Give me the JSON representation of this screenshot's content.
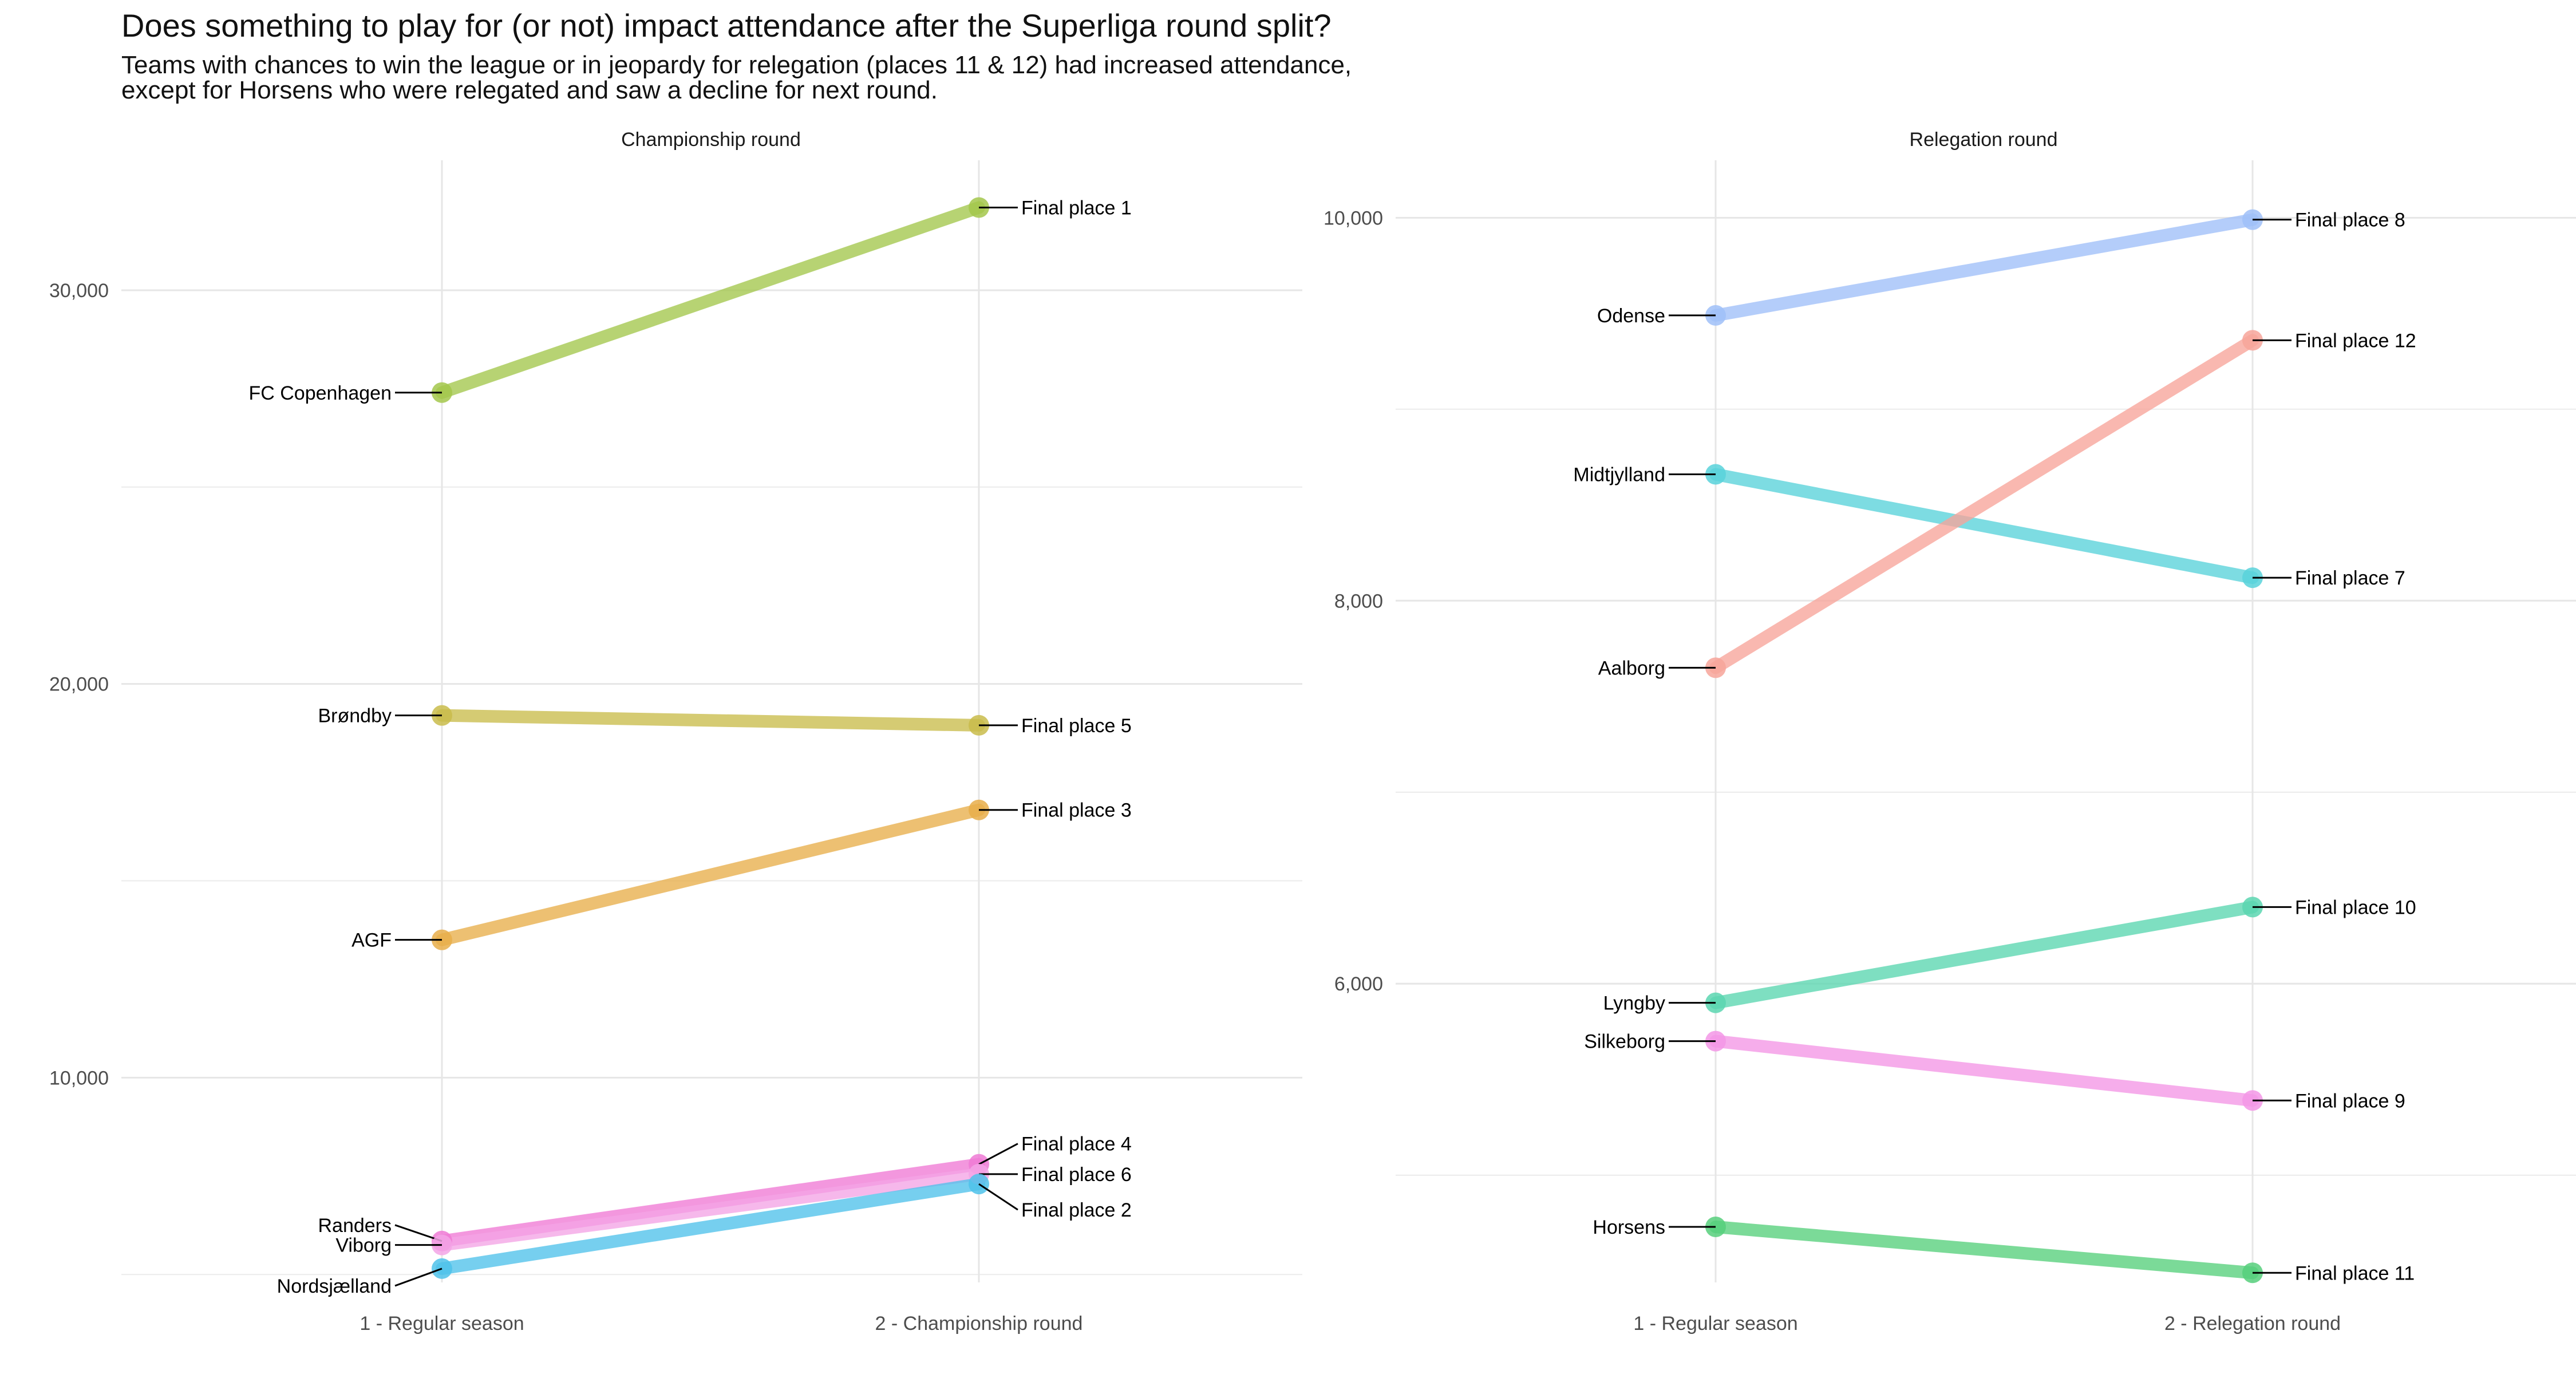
{
  "title": "Does something to play for (or not) impact attendance after the Superliga round split?",
  "subtitle_lines": [
    "Teams with chances to win the league or in jeopardy for relegation (places 11 & 12) had increased attendance,",
    "except for Horsens who were relegated and saw a decline for next round."
  ],
  "chart_data": [
    {
      "type": "line",
      "panel_title": "Championship round",
      "categories": [
        "1 - Regular season",
        "2 - Championship round"
      ],
      "ylim": [
        4800,
        33300
      ],
      "y_ticks": [
        10000,
        20000,
        30000
      ],
      "y_tick_labels": [
        "10,000",
        "20,000",
        "30,000"
      ],
      "grid": true,
      "series": [
        {
          "name": "FC Copenhagen",
          "color": "#a3c74b",
          "values": [
            27400,
            32100
          ],
          "end_label": "Final place 1"
        },
        {
          "name": "Brøndby",
          "color": "#c9bc4b",
          "values": [
            19200,
            18950
          ],
          "end_label": "Final place 5"
        },
        {
          "name": "AGF",
          "color": "#e8ae4a",
          "values": [
            13500,
            16800
          ],
          "end_label": "Final place 3"
        },
        {
          "name": "Randers",
          "color": "#ef7ad5",
          "values": [
            5850,
            7800
          ],
          "end_label": "Final place 4"
        },
        {
          "name": "Viborg",
          "color": "#f3a4e6",
          "values": [
            5750,
            7550
          ],
          "end_label": "Final place 6"
        },
        {
          "name": "Nordsjælland",
          "color": "#4fc2ea",
          "values": [
            5150,
            7300
          ],
          "end_label": "Final place 2"
        }
      ]
    },
    {
      "type": "line",
      "panel_title": "Relegation round",
      "categories": [
        "1 - Regular season",
        "2 - Relegation round"
      ],
      "ylim": [
        4440,
        10300
      ],
      "y_ticks": [
        6000,
        8000,
        10000
      ],
      "y_tick_labels": [
        "6,000",
        "8,000",
        "10,000"
      ],
      "grid": true,
      "series": [
        {
          "name": "Odense",
          "color": "#9fbff8",
          "values": [
            9490,
            9990
          ],
          "end_label": "Final place 8"
        },
        {
          "name": "Midtjylland",
          "color": "#58d2da",
          "values": [
            8660,
            8120
          ],
          "end_label": "Final place 7"
        },
        {
          "name": "Aalborg",
          "color": "#f7a49a",
          "values": [
            7650,
            9360
          ],
          "end_label": "Final place 12"
        },
        {
          "name": "Lyngby",
          "color": "#5ad6b0",
          "values": [
            5900,
            6400
          ],
          "end_label": "Final place 10"
        },
        {
          "name": "Silkeborg",
          "color": "#f396e6",
          "values": [
            5700,
            5390
          ],
          "end_label": "Final place 9"
        },
        {
          "name": "Horsens",
          "color": "#56cf7b",
          "values": [
            4730,
            4490
          ],
          "end_label": "Final place 11"
        }
      ]
    }
  ]
}
